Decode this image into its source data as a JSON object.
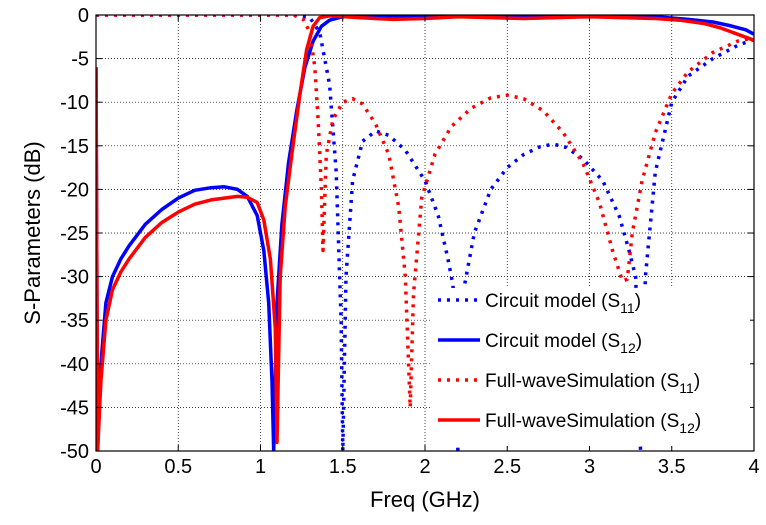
{
  "chart_data": {
    "type": "line",
    "title": "",
    "xlabel": "Freq (GHz)",
    "ylabel": "S-Parameters (dB)",
    "xlim": [
      0,
      4
    ],
    "ylim": [
      -50,
      0
    ],
    "xticks": [
      0,
      0.5,
      1,
      1.5,
      2,
      2.5,
      3,
      3.5,
      4
    ],
    "xtick_labels": [
      "0",
      "0.5",
      "1",
      "1.5",
      "2",
      "2.5",
      "3",
      "3.5",
      "4"
    ],
    "yticks": [
      0,
      -5,
      -10,
      -15,
      -20,
      -25,
      -30,
      -35,
      -40,
      -45,
      -50
    ],
    "ytick_labels": [
      "0",
      "-5",
      "-10",
      "-15",
      "-20",
      "-25",
      "-30",
      "-35",
      "-40",
      "-45",
      "-50"
    ],
    "grid": true,
    "legend_position": "bottom-right",
    "series": [
      {
        "name": "Circuit model",
        "subscript": "11",
        "color": "#0000ff",
        "style": "dotted",
        "points": [
          [
            0,
            0
          ],
          [
            1.2,
            0
          ],
          [
            1.3,
            -0.3
          ],
          [
            1.36,
            -2
          ],
          [
            1.42,
            -8
          ],
          [
            1.46,
            -18
          ],
          [
            1.49,
            -35
          ],
          [
            1.5,
            -50
          ],
          [
            1.52,
            -30
          ],
          [
            1.56,
            -19
          ],
          [
            1.62,
            -14.5
          ],
          [
            1.7,
            -13.3
          ],
          [
            1.78,
            -13.8
          ],
          [
            1.88,
            -15.5
          ],
          [
            2.0,
            -19
          ],
          [
            2.08,
            -23
          ],
          [
            2.14,
            -28
          ],
          [
            2.17,
            -31
          ],
          [
            2.19,
            -45
          ],
          [
            2.2,
            -50
          ],
          [
            2.24,
            -31
          ],
          [
            2.3,
            -25
          ],
          [
            2.4,
            -20
          ],
          [
            2.5,
            -17.5
          ],
          [
            2.6,
            -16
          ],
          [
            2.7,
            -15.1
          ],
          [
            2.78,
            -14.8
          ],
          [
            2.86,
            -15.2
          ],
          [
            2.96,
            -16.5
          ],
          [
            3.08,
            -19
          ],
          [
            3.18,
            -23
          ],
          [
            3.24,
            -27
          ],
          [
            3.28,
            -30
          ],
          [
            3.3,
            -40
          ],
          [
            3.31,
            -50
          ],
          [
            3.34,
            -30
          ],
          [
            3.4,
            -18
          ],
          [
            3.5,
            -10
          ],
          [
            3.6,
            -7
          ],
          [
            3.75,
            -5
          ],
          [
            3.9,
            -3.5
          ],
          [
            4.0,
            -2.8
          ]
        ]
      },
      {
        "name": "Circuit model",
        "subscript": "12",
        "color": "#0000ff",
        "style": "solid",
        "points": [
          [
            0.0,
            -6
          ],
          [
            0.01,
            -50
          ],
          [
            0.03,
            -40
          ],
          [
            0.06,
            -33
          ],
          [
            0.1,
            -30
          ],
          [
            0.15,
            -28
          ],
          [
            0.2,
            -26.5
          ],
          [
            0.3,
            -24
          ],
          [
            0.4,
            -22.3
          ],
          [
            0.5,
            -21
          ],
          [
            0.6,
            -20.1
          ],
          [
            0.7,
            -19.8
          ],
          [
            0.78,
            -19.7
          ],
          [
            0.86,
            -20
          ],
          [
            0.92,
            -20.8
          ],
          [
            0.98,
            -23
          ],
          [
            1.02,
            -27
          ],
          [
            1.05,
            -33
          ],
          [
            1.07,
            -42
          ],
          [
            1.08,
            -50
          ],
          [
            1.1,
            -33
          ],
          [
            1.13,
            -24
          ],
          [
            1.17,
            -17
          ],
          [
            1.22,
            -11
          ],
          [
            1.27,
            -6
          ],
          [
            1.32,
            -3
          ],
          [
            1.37,
            -1.3
          ],
          [
            1.42,
            -0.6
          ],
          [
            1.5,
            -0.2
          ],
          [
            1.7,
            -0.1
          ],
          [
            2.0,
            -0.1
          ],
          [
            2.5,
            -0.1
          ],
          [
            3.0,
            -0.1
          ],
          [
            3.4,
            -0.2
          ],
          [
            3.6,
            -0.5
          ],
          [
            3.75,
            -0.8
          ],
          [
            3.85,
            -1.2
          ],
          [
            3.95,
            -1.7
          ],
          [
            4.0,
            -2.2
          ]
        ]
      },
      {
        "name": "Full-waveSimulation",
        "subscript": "11",
        "color": "#ff0000",
        "style": "dotted",
        "points": [
          [
            0,
            0
          ],
          [
            1.2,
            0
          ],
          [
            1.26,
            -0.5
          ],
          [
            1.3,
            -2
          ],
          [
            1.33,
            -6
          ],
          [
            1.35,
            -12
          ],
          [
            1.37,
            -20
          ],
          [
            1.38,
            -27
          ],
          [
            1.4,
            -16
          ],
          [
            1.44,
            -12
          ],
          [
            1.5,
            -10
          ],
          [
            1.56,
            -9.6
          ],
          [
            1.62,
            -10.2
          ],
          [
            1.7,
            -12.5
          ],
          [
            1.78,
            -16
          ],
          [
            1.84,
            -22
          ],
          [
            1.88,
            -30
          ],
          [
            1.91,
            -45
          ],
          [
            1.93,
            -32
          ],
          [
            1.98,
            -21
          ],
          [
            2.06,
            -16
          ],
          [
            2.16,
            -12.8
          ],
          [
            2.28,
            -10.7
          ],
          [
            2.4,
            -9.5
          ],
          [
            2.5,
            -9.2
          ],
          [
            2.6,
            -9.6
          ],
          [
            2.72,
            -11
          ],
          [
            2.84,
            -13.5
          ],
          [
            2.96,
            -17
          ],
          [
            3.06,
            -21.5
          ],
          [
            3.14,
            -27
          ],
          [
            3.2,
            -30.5
          ],
          [
            3.23,
            -30.3
          ],
          [
            3.26,
            -25
          ],
          [
            3.32,
            -19
          ],
          [
            3.4,
            -13.5
          ],
          [
            3.5,
            -9
          ],
          [
            3.6,
            -6.5
          ],
          [
            3.75,
            -4.3
          ],
          [
            3.9,
            -3
          ],
          [
            4.0,
            -2.6
          ]
        ]
      },
      {
        "name": "Full-waveSimulation",
        "subscript": "12",
        "color": "#ff0000",
        "style": "solid",
        "points": [
          [
            0.0,
            -6
          ],
          [
            0.01,
            -50
          ],
          [
            0.03,
            -42
          ],
          [
            0.06,
            -35
          ],
          [
            0.1,
            -31.5
          ],
          [
            0.15,
            -29.5
          ],
          [
            0.2,
            -28
          ],
          [
            0.3,
            -25.5
          ],
          [
            0.4,
            -23.8
          ],
          [
            0.5,
            -22.6
          ],
          [
            0.6,
            -21.7
          ],
          [
            0.7,
            -21.2
          ],
          [
            0.78,
            -21
          ],
          [
            0.86,
            -20.8
          ],
          [
            0.92,
            -20.9
          ],
          [
            0.98,
            -21.5
          ],
          [
            1.02,
            -23.5
          ],
          [
            1.06,
            -28
          ],
          [
            1.09,
            -36
          ],
          [
            1.1,
            -49
          ],
          [
            1.12,
            -30
          ],
          [
            1.15,
            -22
          ],
          [
            1.19,
            -16
          ],
          [
            1.24,
            -9
          ],
          [
            1.28,
            -4
          ],
          [
            1.32,
            -1.3
          ],
          [
            1.36,
            -0.3
          ],
          [
            1.42,
            -0.1
          ],
          [
            1.6,
            -0.3
          ],
          [
            1.8,
            -0.5
          ],
          [
            2.0,
            -0.4
          ],
          [
            2.2,
            -0.2
          ],
          [
            2.4,
            -0.3
          ],
          [
            2.6,
            -0.4
          ],
          [
            2.8,
            -0.3
          ],
          [
            3.0,
            -0.2
          ],
          [
            3.2,
            -0.3
          ],
          [
            3.4,
            -0.4
          ],
          [
            3.55,
            -0.6
          ],
          [
            3.7,
            -1.0
          ],
          [
            3.8,
            -1.5
          ],
          [
            3.9,
            -2.2
          ],
          [
            4.0,
            -2.9
          ]
        ]
      }
    ]
  }
}
